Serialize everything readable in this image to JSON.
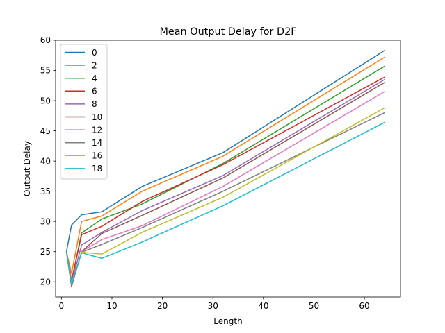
{
  "chart_data": {
    "type": "line",
    "title": "Mean Output Delay for D2F",
    "xlabel": "Length",
    "ylabel": "Output Delay",
    "xlim": [
      -1.15,
      67.15
    ],
    "ylim": [
      17.5,
      60.0
    ],
    "xticks": [
      0,
      10,
      20,
      30,
      40,
      50,
      60
    ],
    "yticks": [
      20,
      25,
      30,
      35,
      40,
      45,
      50,
      55,
      60
    ],
    "grid": false,
    "legend_position": "top-left",
    "x": [
      1,
      2,
      4,
      8,
      16,
      32,
      64
    ],
    "series": [
      {
        "name": "0",
        "color": "#1f77b4",
        "values": [
          25.0,
          29.4,
          31.1,
          31.6,
          35.8,
          41.4,
          58.3
        ]
      },
      {
        "name": "2",
        "color": "#ff7f0e",
        "values": [
          25.0,
          21.4,
          30.0,
          30.9,
          35.0,
          40.8,
          57.2
        ]
      },
      {
        "name": "4",
        "color": "#2ca02c",
        "values": [
          25.0,
          20.1,
          28.1,
          30.4,
          32.9,
          39.6,
          55.7
        ]
      },
      {
        "name": "6",
        "color": "#d62728",
        "values": [
          25.0,
          20.2,
          27.8,
          29.2,
          33.3,
          39.4,
          53.9
        ]
      },
      {
        "name": "8",
        "color": "#9467bd",
        "values": [
          25.0,
          19.9,
          26.1,
          28.2,
          31.8,
          37.6,
          53.5
        ]
      },
      {
        "name": "10",
        "color": "#8c564b",
        "values": [
          25.0,
          19.2,
          25.0,
          28.0,
          31.0,
          37.2,
          53.0
        ]
      },
      {
        "name": "12",
        "color": "#e377c2",
        "values": [
          25.0,
          19.5,
          25.0,
          27.0,
          29.3,
          35.8,
          51.5
        ]
      },
      {
        "name": "14",
        "color": "#7f7f7f",
        "values": [
          25.0,
          19.4,
          24.9,
          26.2,
          29.0,
          35.0,
          48.0
        ]
      },
      {
        "name": "16",
        "color": "#bcbd22",
        "values": [
          25.0,
          19.7,
          24.9,
          24.6,
          28.2,
          34.0,
          48.8
        ]
      },
      {
        "name": "18",
        "color": "#17becf",
        "values": [
          25.0,
          19.6,
          24.8,
          23.9,
          26.6,
          32.6,
          46.4
        ]
      }
    ]
  }
}
